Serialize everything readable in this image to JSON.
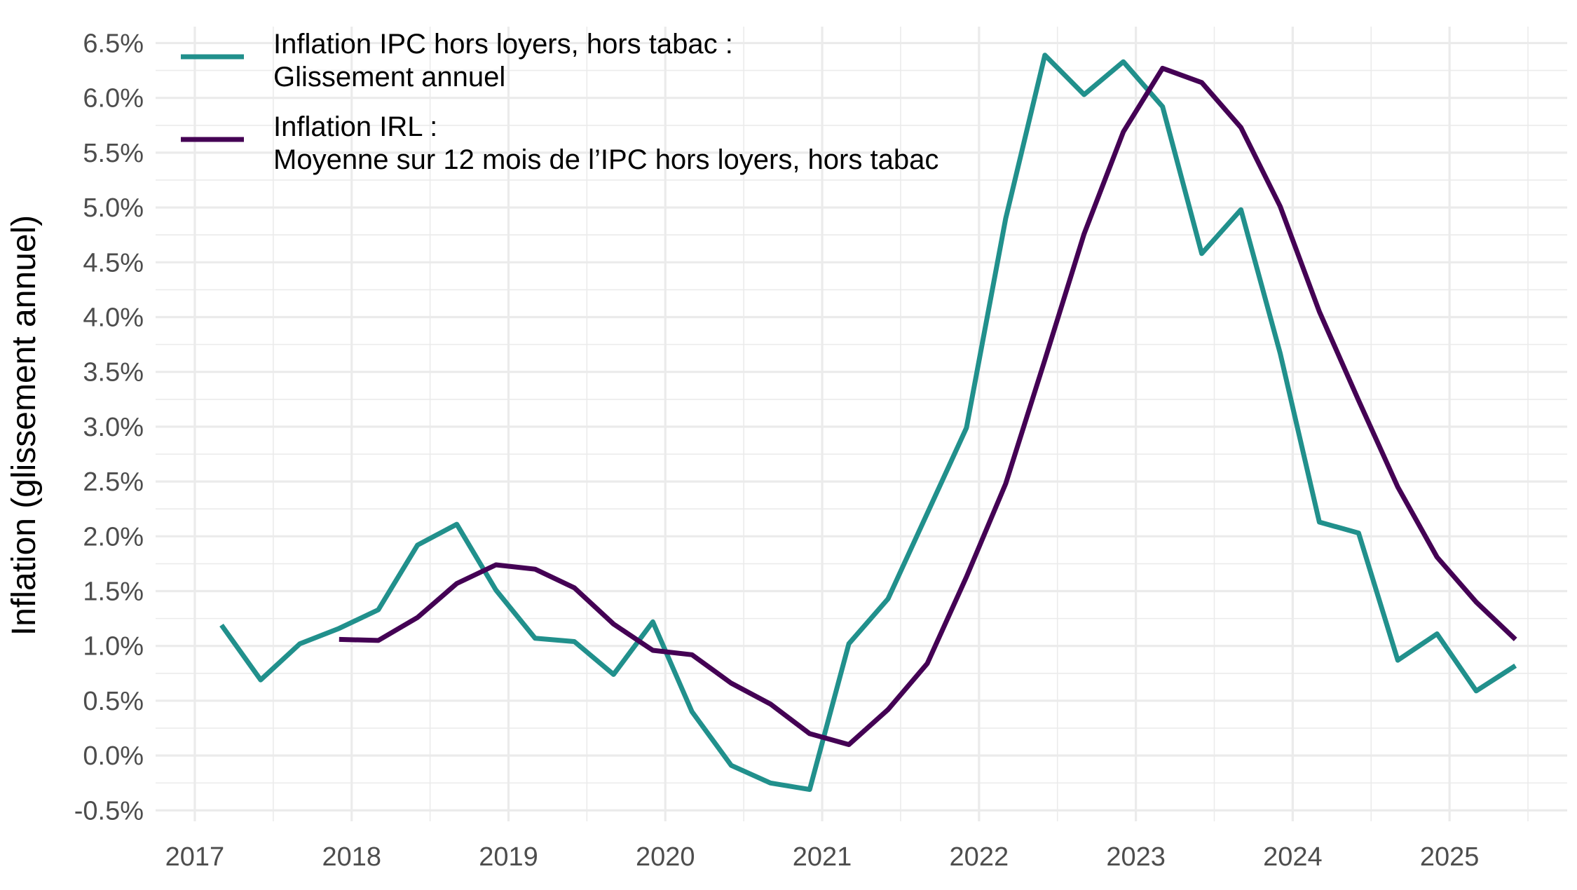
{
  "chart_data": {
    "type": "line",
    "title": "",
    "xlabel": "",
    "ylabel": "Inflation (glissement annuel)",
    "xlim": [
      2016.75,
      2025.75
    ],
    "ylim": [
      -0.6,
      6.65
    ],
    "x_ticks": [
      "2017",
      "2018",
      "2019",
      "2020",
      "2021",
      "2022",
      "2023",
      "2024",
      "2025"
    ],
    "y_ticks": [
      "-0.5%",
      "0.0%",
      "0.5%",
      "1.0%",
      "1.5%",
      "2.0%",
      "2.5%",
      "3.0%",
      "3.5%",
      "4.0%",
      "4.5%",
      "5.0%",
      "5.5%",
      "6.0%",
      "6.5%"
    ],
    "grid": true,
    "legend_position": "top-left",
    "series": [
      {
        "name": "Inflation IPC hors loyers, hors tabac : Glissement annuel",
        "name_lines": [
          "Inflation IPC hors loyers, hors tabac :",
          "Glissement annuel"
        ],
        "color": "#21908c",
        "x": [
          2017.17,
          2017.42,
          2017.67,
          2017.92,
          2018.17,
          2018.42,
          2018.67,
          2018.92,
          2019.17,
          2019.42,
          2019.67,
          2019.92,
          2020.17,
          2020.42,
          2020.67,
          2020.92,
          2021.17,
          2021.42,
          2021.67,
          2021.92,
          2022.17,
          2022.42,
          2022.67,
          2022.92,
          2023.17,
          2023.42,
          2023.67,
          2023.92,
          2024.17,
          2024.42,
          2024.67,
          2024.92,
          2025.17,
          2025.42
        ],
        "y": [
          1.19,
          0.69,
          1.02,
          1.16,
          1.33,
          1.92,
          2.11,
          1.51,
          1.07,
          1.04,
          0.74,
          1.22,
          0.4,
          -0.09,
          -0.25,
          -0.31,
          1.02,
          1.43,
          2.21,
          2.99,
          4.9,
          6.39,
          6.03,
          6.33,
          5.92,
          4.58,
          4.98,
          3.67,
          2.13,
          2.03,
          0.87,
          1.11,
          0.59,
          0.82
        ]
      },
      {
        "name": "Inflation IRL : Moyenne sur 12 mois de l’IPC hors loyers, hors tabac",
        "name_lines": [
          "Inflation IRL :",
          "Moyenne sur 12 mois de l’IPC hors loyers, hors tabac"
        ],
        "color": "#440154",
        "x": [
          2017.92,
          2018.17,
          2018.42,
          2018.67,
          2018.92,
          2019.17,
          2019.42,
          2019.67,
          2019.92,
          2020.17,
          2020.42,
          2020.67,
          2020.92,
          2021.17,
          2021.42,
          2021.67,
          2021.92,
          2022.17,
          2022.42,
          2022.67,
          2022.92,
          2023.17,
          2023.42,
          2023.67,
          2023.92,
          2024.17,
          2024.42,
          2024.67,
          2024.92,
          2025.17,
          2025.42
        ],
        "y": [
          1.06,
          1.05,
          1.26,
          1.57,
          1.74,
          1.7,
          1.53,
          1.2,
          0.96,
          0.92,
          0.66,
          0.47,
          0.2,
          0.1,
          0.42,
          0.84,
          1.63,
          2.48,
          3.61,
          4.76,
          5.69,
          6.27,
          6.14,
          5.73,
          5.01,
          4.05,
          3.24,
          2.45,
          1.81,
          1.4,
          1.06
        ]
      }
    ]
  }
}
